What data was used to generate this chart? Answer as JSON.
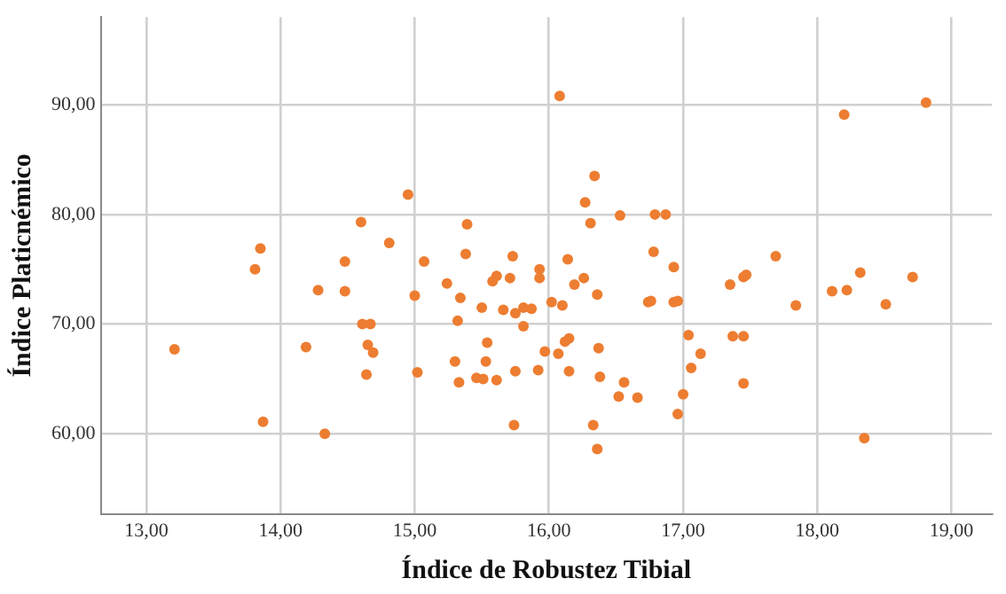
{
  "chart_data": {
    "type": "scatter",
    "xlabel": "Índice de Robustez Tibial",
    "ylabel": "Índice Platicnémico",
    "marker": "circle",
    "grid": true,
    "legend": false,
    "xlim": [
      12.66,
      19.3
    ],
    "ylim": [
      52.7,
      98
    ],
    "xticks": [
      {
        "value": 13,
        "label": "13,00"
      },
      {
        "value": 14,
        "label": "14,00"
      },
      {
        "value": 15,
        "label": "15,00"
      },
      {
        "value": 16,
        "label": "16,00"
      },
      {
        "value": 17,
        "label": "17,00"
      },
      {
        "value": 18,
        "label": "18,00"
      },
      {
        "value": 19,
        "label": "19,00"
      }
    ],
    "yticks": [
      {
        "value": 60,
        "label": "60,00"
      },
      {
        "value": 70,
        "label": "70,00"
      },
      {
        "value": 80,
        "label": "80,00"
      },
      {
        "value": 90,
        "label": "90,00"
      }
    ],
    "series": [
      {
        "color": "#ed7d31",
        "x": [
          13.21,
          13.85,
          13.81,
          14.28,
          14.19,
          13.87,
          14.33,
          14.6,
          14.48,
          14.48,
          14.81,
          14.95,
          15.07,
          15.0,
          14.61,
          14.67,
          14.65,
          14.69,
          14.64,
          15.02,
          16.08,
          16.34,
          16.27,
          16.31,
          16.53,
          16.79,
          16.87,
          15.39,
          15.38,
          15.73,
          16.14,
          16.78,
          16.93,
          15.24,
          15.34,
          15.5,
          15.32,
          15.58,
          15.61,
          15.71,
          15.93,
          15.93,
          16.19,
          16.26,
          16.36,
          15.66,
          15.75,
          15.81,
          15.87,
          15.81,
          16.02,
          16.1,
          16.74,
          16.76,
          16.93,
          16.96,
          15.54,
          15.53,
          15.3,
          15.33,
          15.46,
          15.51,
          15.61,
          15.75,
          15.97,
          15.92,
          16.07,
          16.12,
          16.15,
          16.37,
          16.15,
          16.38,
          16.56,
          16.52,
          16.66,
          15.74,
          16.33,
          16.36,
          17.0,
          16.96,
          17.04,
          17.13,
          17.06,
          18.81,
          18.2,
          17.69,
          17.47,
          17.45,
          17.35,
          17.84,
          18.11,
          18.22,
          18.32,
          18.71,
          18.51,
          17.37,
          17.45,
          17.45,
          18.35
        ],
        "values": [
          67.7,
          76.9,
          75.0,
          73.1,
          67.9,
          61.1,
          60.0,
          79.3,
          75.7,
          73.0,
          77.4,
          81.8,
          75.7,
          72.6,
          70.0,
          70.0,
          68.1,
          67.4,
          65.4,
          65.6,
          90.8,
          83.5,
          81.1,
          79.2,
          79.9,
          80.0,
          80.0,
          79.1,
          76.4,
          76.2,
          75.9,
          76.6,
          75.2,
          73.7,
          72.4,
          71.5,
          70.3,
          73.9,
          74.4,
          74.2,
          75.0,
          74.2,
          73.6,
          74.2,
          72.7,
          71.3,
          71.0,
          71.5,
          71.4,
          69.8,
          72.0,
          71.7,
          72.0,
          72.1,
          72.0,
          72.1,
          68.3,
          66.6,
          66.6,
          64.7,
          65.1,
          65.0,
          64.9,
          65.7,
          67.5,
          65.8,
          67.3,
          68.4,
          68.7,
          67.8,
          65.7,
          65.2,
          64.7,
          63.4,
          63.3,
          60.8,
          60.8,
          58.6,
          63.6,
          61.8,
          69.0,
          67.3,
          66.0,
          90.2,
          89.1,
          76.2,
          74.5,
          74.3,
          73.6,
          71.7,
          73.0,
          73.1,
          74.7,
          74.3,
          71.8,
          68.9,
          68.9,
          64.6,
          59.6
        ]
      }
    ]
  }
}
